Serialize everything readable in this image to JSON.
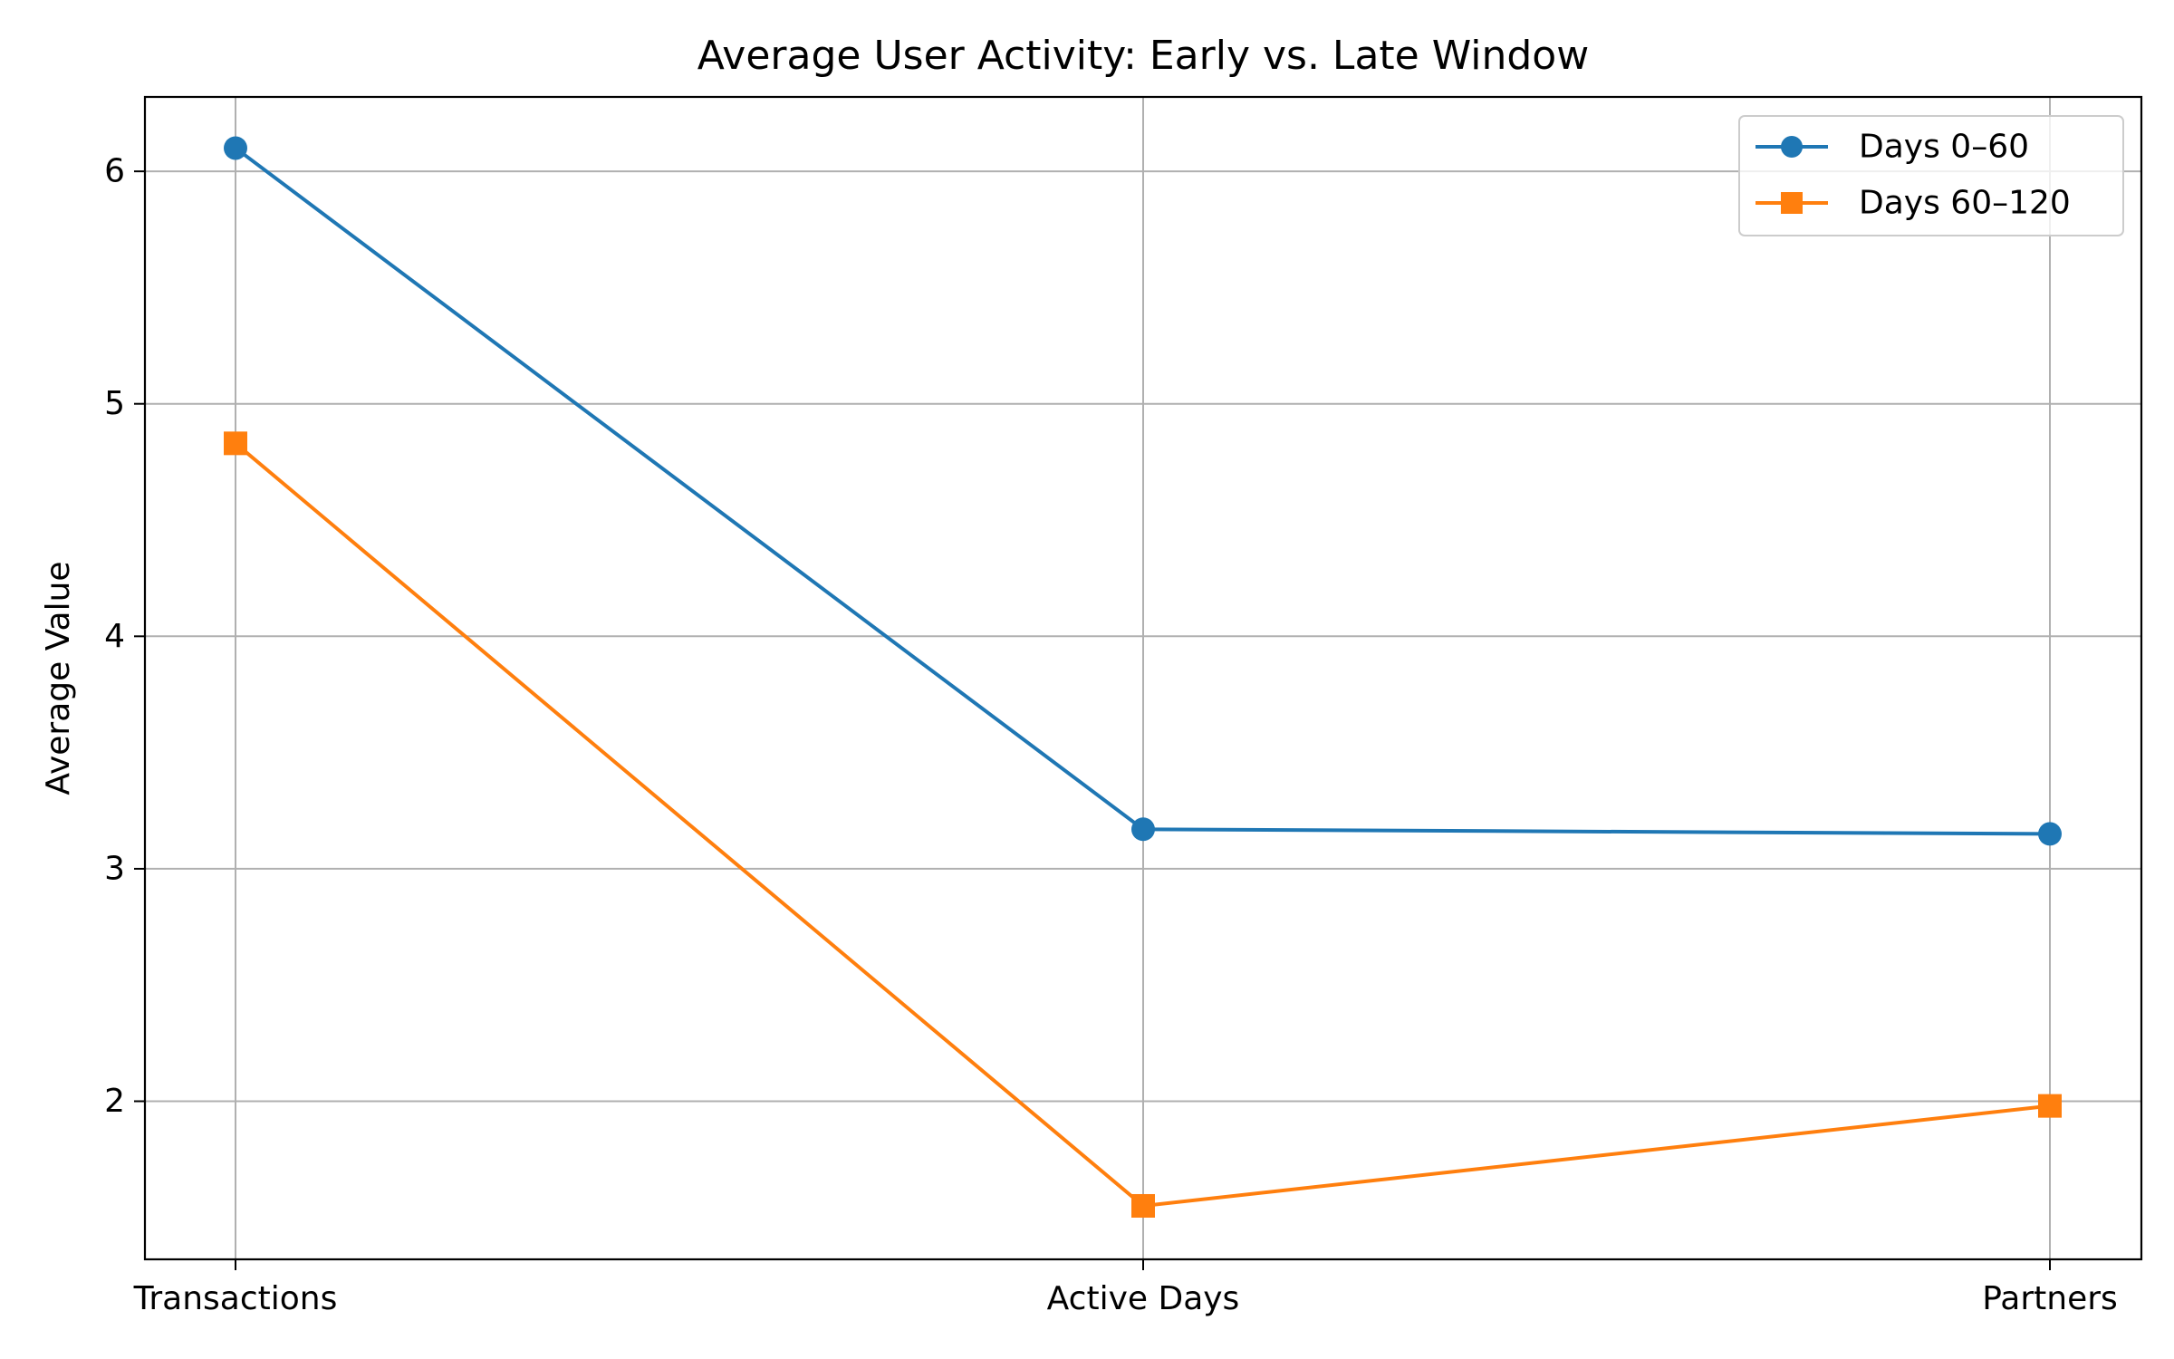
{
  "chart_data": {
    "type": "line",
    "title": "Average User Activity: Early vs. Late Window",
    "xlabel": "",
    "ylabel": "Average Value",
    "categories": [
      "Transactions",
      "Active Days",
      "Partners"
    ],
    "yticks": [
      "2",
      "3",
      "4",
      "5",
      "6"
    ],
    "ylim": [
      1.32,
      6.32
    ],
    "grid": true,
    "legend_position": "top-right",
    "series": [
      {
        "name": "Days 0–60",
        "values": [
          6.1,
          3.17,
          3.15
        ],
        "color": "#1f77b4",
        "marker": "circle"
      },
      {
        "name": "Days 60–120",
        "values": [
          4.83,
          1.55,
          1.98
        ],
        "color": "#ff7f0e",
        "marker": "square"
      }
    ]
  }
}
